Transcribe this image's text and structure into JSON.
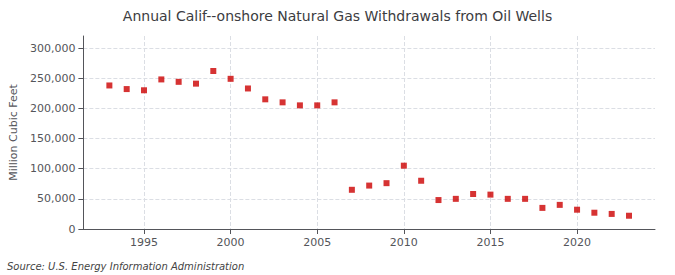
{
  "chart_data": {
    "type": "scatter",
    "title": "Annual Calif--onshore Natural Gas Withdrawals from Oil Wells",
    "ylabel": "Million Cubic Feet",
    "annotations": [
      "Source: U.S. Energy Information Administration"
    ],
    "x": [
      1993,
      1994,
      1995,
      1996,
      1997,
      1998,
      1999,
      2000,
      2001,
      2002,
      2003,
      2004,
      2005,
      2006,
      2007,
      2008,
      2009,
      2010,
      2011,
      2012,
      2013,
      2014,
      2015,
      2016,
      2017,
      2018,
      2019,
      2020,
      2021,
      2022,
      2023
    ],
    "values": [
      238000,
      232000,
      230000,
      248000,
      244000,
      241000,
      262000,
      249000,
      233000,
      215000,
      210000,
      205000,
      205000,
      210000,
      65000,
      72000,
      76000,
      105000,
      80000,
      48000,
      50000,
      58000,
      57000,
      50000,
      50000,
      35000,
      40000,
      32000,
      27000,
      25000,
      22000
    ],
    "color": "#cc0000",
    "marker": "square",
    "xlim": [
      1991.5,
      2024.5
    ],
    "xticks": [
      1995,
      2000,
      2005,
      2010,
      2015,
      2020
    ],
    "ylim": [
      0,
      320000
    ],
    "yticks": [
      0,
      {
        "value": 50000,
        "label": "50,000"
      },
      {
        "value": 100000,
        "label": "100,000"
      },
      {
        "value": 150000,
        "label": "150,000"
      },
      {
        "value": 200000,
        "label": "200,000"
      },
      {
        "value": 250000,
        "label": "250,000"
      },
      {
        "value": 300000,
        "label": "300,000"
      }
    ],
    "grid": true
  }
}
